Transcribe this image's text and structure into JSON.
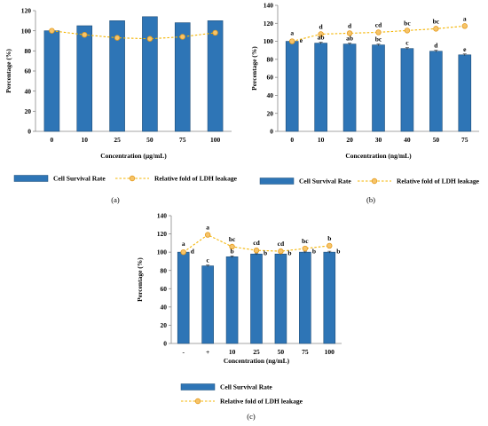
{
  "colors": {
    "bar": "#2e75b6",
    "bar_edge": "#1f4e79",
    "line": "#f4b400",
    "marker_fill": "#f6c46a",
    "marker_edge": "#e69b1c",
    "axis": "#888888"
  },
  "chart_data": [
    {
      "type": "bar",
      "panel_label": "(a)",
      "categories": [
        "0",
        "10",
        "25",
        "50",
        "75",
        "100"
      ],
      "xlabel": "Concentration (μg/mL)",
      "ylabel": "Percentage (%)",
      "ylim": [
        0,
        120
      ],
      "yticks": [
        "0",
        "20",
        "40",
        "60",
        "80",
        "100",
        "120"
      ],
      "grid": false,
      "legend_position": "bottom",
      "series": [
        {
          "name": "Cell Survival Rate",
          "kind": "bar",
          "values": [
            100,
            105,
            110,
            114,
            108,
            110
          ]
        },
        {
          "name": "Relative fold of LDH leakage",
          "kind": "line",
          "values": [
            100,
            96,
            93,
            92,
            94,
            98
          ]
        }
      ]
    },
    {
      "type": "bar",
      "panel_label": "(b)",
      "categories": [
        "0",
        "10",
        "20",
        "30",
        "40",
        "50",
        "75"
      ],
      "xlabel": "Concentration (ng/mL)",
      "ylabel": "Percentage (%)",
      "ylim": [
        0,
        140
      ],
      "yticks": [
        "0",
        "20",
        "40",
        "60",
        "80",
        "100",
        "120",
        "140"
      ],
      "grid": false,
      "legend_position": "bottom",
      "series": [
        {
          "name": "Cell Survival Rate",
          "kind": "bar",
          "values": [
            100,
            98,
            97,
            96,
            92,
            89,
            85
          ],
          "error": [
            1,
            1,
            1,
            1,
            1,
            1,
            1
          ],
          "labels": [
            "e",
            "ab",
            "ab",
            "bc",
            "c",
            "d",
            "e"
          ]
        },
        {
          "name": "Relative fold of LDH leakage",
          "kind": "line",
          "values": [
            100,
            108,
            109,
            110,
            112,
            114,
            117
          ],
          "labels": [
            "a",
            "d",
            "d",
            "cd",
            "bc",
            "bc",
            "a"
          ]
        }
      ]
    },
    {
      "type": "bar",
      "panel_label": "(c)",
      "categories": [
        "-",
        "+",
        "10",
        "25",
        "50",
        "75",
        "100"
      ],
      "xlabel": "Concentration (ng/mL)",
      "ylabel": "Percentage (%)",
      "ylim": [
        0,
        140
      ],
      "yticks": [
        "0",
        "20",
        "40",
        "60",
        "80",
        "100",
        "120",
        "140"
      ],
      "grid": false,
      "legend_position": "bottom",
      "series": [
        {
          "name": "Cell Survival Rate",
          "kind": "bar",
          "values": [
            100,
            85,
            95,
            98,
            98,
            100,
            100
          ],
          "error": [
            1,
            1,
            1,
            1,
            1,
            1,
            1
          ],
          "labels": [
            "d",
            "c",
            "b",
            "b",
            "b",
            "b",
            "b"
          ]
        },
        {
          "name": "Relative fold of LDH leakage",
          "kind": "line",
          "values": [
            100,
            119,
            106,
            102,
            101,
            104,
            107
          ],
          "labels": [
            "a",
            "a",
            "bc",
            "cd",
            "cd",
            "bc",
            "b"
          ]
        }
      ]
    }
  ]
}
